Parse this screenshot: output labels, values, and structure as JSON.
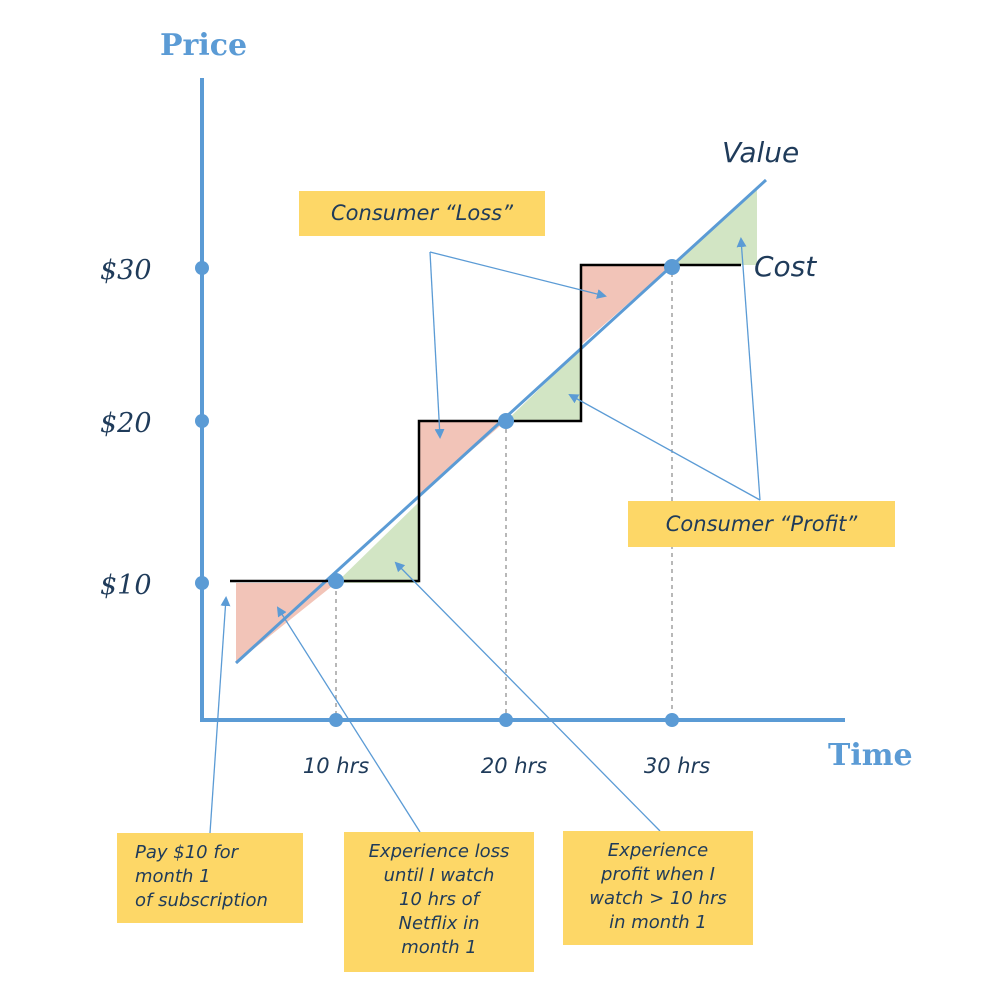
{
  "axes": {
    "y_title": "Price",
    "x_title": "Time",
    "y_ticks": [
      "$30",
      "$20",
      "$10"
    ],
    "x_ticks": [
      "10 hrs",
      "20 hrs",
      "30 hrs"
    ]
  },
  "lines": {
    "value_label": "Value",
    "cost_label": "Cost"
  },
  "callouts": {
    "loss": "Consumer “Loss”",
    "profit": "Consumer “Profit”"
  },
  "notes": {
    "pay": "Pay $10 for\nmonth 1\nof subscription",
    "loss": "Experience loss\nuntil I watch\n10 hrs of\nNetflix in\nmonth 1",
    "profit": "Experience\nprofit when I\nwatch > 10 hrs\nin month 1"
  },
  "colors": {
    "axis": "#5b9bd5",
    "value_line": "#5b9bd5",
    "cost_line": "#000000",
    "loss_fill": "#f2c4b8",
    "profit_fill": "#d2e5c4",
    "callout_fill": "#fdd767",
    "text": "#1f3b5a"
  }
}
